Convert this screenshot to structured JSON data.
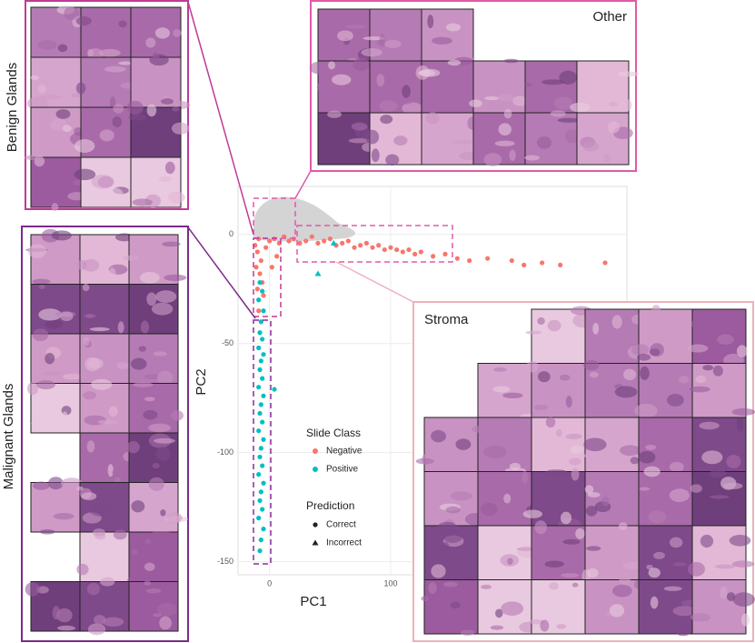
{
  "chart_data": {
    "type": "scatter",
    "x_label": "PC1",
    "y_label": "PC2",
    "xlim": [
      -26,
      295
    ],
    "ylim": [
      -156,
      22
    ],
    "xticks": [
      0,
      100
    ],
    "yticks": [
      0,
      -50,
      -100,
      -150
    ],
    "grid": true,
    "legend_title": "Slide Class",
    "series": [
      {
        "name": "Negative",
        "color": "#f8766d",
        "x": [
          -12,
          -10,
          -9,
          -7,
          -11,
          -8,
          -6,
          -10,
          -5,
          -3,
          0,
          4,
          8,
          12,
          16,
          20,
          25,
          30,
          35,
          40,
          45,
          50,
          55,
          60,
          65,
          70,
          75,
          80,
          85,
          90,
          95,
          100,
          105,
          110,
          115,
          120,
          125,
          135,
          145,
          155,
          165,
          180,
          200,
          210,
          225,
          240,
          277,
          -9,
          2,
          6
        ],
        "y": [
          -5,
          -8,
          -2,
          -12,
          -15,
          -18,
          -22,
          -25,
          -28,
          -6,
          -3,
          -2,
          -4,
          -1,
          -3,
          -2,
          -4,
          -3,
          -1,
          -4,
          -3,
          -2,
          -5,
          -4,
          -3,
          -6,
          -5,
          -4,
          -6,
          -5,
          -7,
          -6,
          -7,
          -8,
          -7,
          -9,
          -8,
          -10,
          -9,
          -11,
          -12,
          -11,
          -12,
          -14,
          -13,
          -14,
          -13,
          -35,
          -15,
          -10
        ],
        "markers": [
          "circle",
          "circle",
          "circle",
          "circle",
          "circle",
          "circle",
          "circle",
          "circle",
          "circle",
          "circle",
          "circle",
          "circle",
          "circle",
          "circle",
          "circle",
          "circle",
          "circle",
          "circle",
          "circle",
          "circle",
          "circle",
          "circle",
          "circle",
          "circle",
          "circle",
          "circle",
          "circle",
          "circle",
          "circle",
          "circle",
          "circle",
          "circle",
          "circle",
          "circle",
          "circle",
          "circle",
          "circle",
          "circle",
          "circle",
          "circle",
          "circle",
          "circle",
          "circle",
          "circle",
          "circle",
          "circle",
          "circle",
          "circle",
          "circle",
          "circle"
        ]
      },
      {
        "name": "Positive",
        "color": "#00bfc4",
        "x": [
          -8,
          -6,
          -9,
          -5,
          -7,
          -8,
          -6,
          -9,
          -5,
          -7,
          -8,
          -6,
          -9,
          -5,
          -7,
          -8,
          -6,
          -9,
          -5,
          -7,
          -8,
          -6,
          -9,
          -5,
          -7,
          -8,
          -6,
          -9,
          -5,
          -7,
          -8,
          4,
          40,
          53
        ],
        "y": [
          -22,
          -26,
          -30,
          -35,
          -40,
          -45,
          -48,
          -52,
          -55,
          -58,
          -62,
          -66,
          -70,
          -74,
          -78,
          -82,
          -86,
          -90,
          -94,
          -98,
          -102,
          -106,
          -110,
          -114,
          -118,
          -122,
          -126,
          -130,
          -135,
          -140,
          -145,
          -71,
          -18,
          -4
        ],
        "markers": [
          "circle",
          "circle",
          "circle",
          "circle",
          "circle",
          "circle",
          "circle",
          "circle",
          "circle",
          "circle",
          "circle",
          "circle",
          "circle",
          "circle",
          "circle",
          "circle",
          "circle",
          "circle",
          "circle",
          "circle",
          "circle",
          "circle",
          "circle",
          "circle",
          "circle",
          "circle",
          "circle",
          "circle",
          "circle",
          "circle",
          "circle",
          "circle",
          "triangle",
          "triangle"
        ]
      }
    ],
    "shape_legend": {
      "title": "Prediction",
      "items": [
        {
          "name": "Correct",
          "marker": "circle"
        },
        {
          "name": "Incorrect",
          "marker": "triangle"
        }
      ]
    }
  },
  "panels": [
    {
      "label": "Benign Glands"
    },
    {
      "label": "Malignant Glands"
    },
    {
      "label": "Other"
    },
    {
      "label": "Stroma"
    }
  ]
}
